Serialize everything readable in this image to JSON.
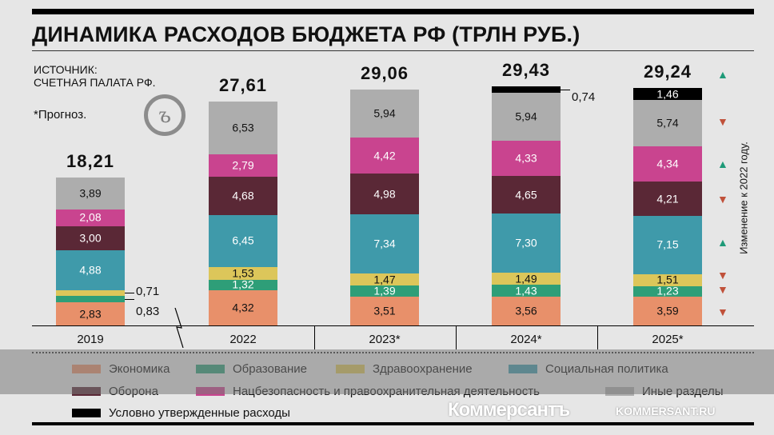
{
  "chart_data": {
    "type": "bar",
    "stacked": true,
    "title": "ДИНАМИКА РАСХОДОВ БЮДЖЕТА РФ (ТРЛН РУБ.)",
    "source": [
      "ИСТОЧНИК:",
      "СЧЕТНАЯ ПАЛАТА РФ."
    ],
    "note": "*Прогноз.",
    "categories": [
      "2019",
      "2022",
      "2023*",
      "2024*",
      "2025*"
    ],
    "totals": [
      "18,21",
      "27,61",
      "29,06",
      "29,43",
      "29,24"
    ],
    "axis_break_after": "2019",
    "series": [
      {
        "name": "Экономика",
        "color": "#e8906a",
        "values": [
          2.83,
          4.32,
          3.51,
          3.56,
          3.59
        ],
        "labels": [
          "2,83",
          "4,32",
          "3,51",
          "3,56",
          "3,59"
        ]
      },
      {
        "name": "Образование",
        "color": "#2e9e78",
        "values": [
          0.83,
          1.32,
          1.39,
          1.43,
          1.23
        ],
        "labels": [
          "0,83",
          "1,32",
          "1,39",
          "1,43",
          "1,23"
        ]
      },
      {
        "name": "Здравоохранение",
        "color": "#dcc65a",
        "values": [
          0.71,
          1.53,
          1.47,
          1.49,
          1.51
        ],
        "labels": [
          "0,71",
          "1,53",
          "1,47",
          "1,49",
          "1,51"
        ]
      },
      {
        "name": "Социальная политика",
        "color": "#3f9aaa",
        "values": [
          4.88,
          6.45,
          7.34,
          7.3,
          7.15
        ],
        "labels": [
          "4,88",
          "6,45",
          "7,34",
          "7,30",
          "7,15"
        ]
      },
      {
        "name": "Оборона",
        "color": "#5a2836",
        "values": [
          3.0,
          4.68,
          4.98,
          4.65,
          4.21
        ],
        "labels": [
          "3,00",
          "4,68",
          "4,98",
          "4,65",
          "4,21"
        ]
      },
      {
        "name": "Нацбезопасность и правоохранительная деятельность",
        "color": "#c9448f",
        "values": [
          2.08,
          2.79,
          4.42,
          4.33,
          4.34
        ],
        "labels": [
          "2,08",
          "2,79",
          "4,42",
          "4,33",
          "4,34"
        ]
      },
      {
        "name": "Иные разделы",
        "color": "#adadad",
        "values": [
          3.89,
          6.53,
          5.94,
          5.94,
          5.74
        ],
        "labels": [
          "3,89",
          "6,53",
          "5,94",
          "5,94",
          "5,74"
        ]
      },
      {
        "name": "Условно утвержденные расходы",
        "color": "#000000",
        "values": [
          0,
          0,
          0,
          0.74,
          1.46
        ],
        "labels": [
          "",
          "",
          "",
          "0,74",
          "1,46"
        ]
      }
    ],
    "change_vs_2022": {
      "label": "Изменение к 2022 году.",
      "up_color": "#1e9a78",
      "down_color": "#c0513a",
      "total": "up",
      "Иные разделы": "down",
      "Нацбезопасность и правоохранительная деятельность": "up",
      "Оборона": "down",
      "Социальная политика": "up",
      "Здравоохранение": "down",
      "Образование": "down",
      "Экономика": "down"
    },
    "legend_position": "bottom",
    "grid": false
  },
  "watermark": {
    "name": "Коммерсантъ",
    "url": "KOMMERSANT.RU"
  }
}
